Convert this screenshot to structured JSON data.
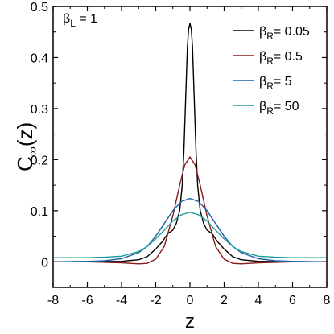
{
  "chart_data": {
    "type": "line",
    "xlabel": "z",
    "ylabel_main": "C",
    "ylabel_sub": "∞",
    "ylabel_suffix": "(z)",
    "xlim": [
      -8,
      8
    ],
    "ylim": [
      -0.05,
      0.5
    ],
    "xticks": [
      "-8",
      "-6",
      "-4",
      "-2",
      "0",
      "2",
      "4",
      "6",
      "8"
    ],
    "yticks": [
      "0",
      "0.1",
      "0.2",
      "0.3",
      "0.4",
      "0.5"
    ],
    "xtick_values": [
      -8,
      -6,
      -4,
      -2,
      0,
      2,
      4,
      6,
      8
    ],
    "ytick_values": [
      0,
      0.1,
      0.2,
      0.3,
      0.4,
      0.5
    ],
    "grid": false,
    "legend_position": "top-right",
    "annotation": {
      "greek": "β",
      "sub": "L",
      "text": " = 1"
    },
    "series": [
      {
        "name_greek": "β",
        "name_sub": "R",
        "name_value": "= 0.05",
        "color": "#000000",
        "x": [
          -8,
          -6,
          -4,
          -3,
          -2.5,
          -2,
          -1.6,
          -1.3,
          -1.0,
          -0.8,
          -0.6,
          -0.45,
          -0.35,
          -0.25,
          -0.15,
          -0.08,
          0,
          0.08,
          0.15,
          0.25,
          0.35,
          0.45,
          0.6,
          0.8,
          1.0,
          1.3,
          1.6,
          2,
          2.5,
          3,
          4,
          6,
          8
        ],
        "y": [
          0.0,
          0.0,
          0.001,
          0.004,
          0.01,
          0.025,
          0.04,
          0.055,
          0.062,
          0.075,
          0.1,
          0.15,
          0.22,
          0.32,
          0.42,
          0.455,
          0.467,
          0.455,
          0.42,
          0.32,
          0.22,
          0.15,
          0.1,
          0.075,
          0.062,
          0.055,
          0.04,
          0.025,
          0.01,
          0.004,
          0.001,
          0.0,
          0.0
        ]
      },
      {
        "name_greek": "β",
        "name_sub": "R",
        "name_value": "= 0.5",
        "color": "#8b1a1a",
        "x": [
          -8,
          -6,
          -4,
          -3,
          -2.5,
          -2,
          -1.5,
          -1.0,
          -0.6,
          -0.3,
          0,
          0.3,
          0.6,
          1.0,
          1.5,
          2,
          2.5,
          3,
          4,
          6,
          8
        ],
        "y": [
          0.0,
          0.0,
          -0.002,
          -0.004,
          -0.003,
          0.005,
          0.03,
          0.09,
          0.15,
          0.19,
          0.205,
          0.19,
          0.15,
          0.09,
          0.03,
          0.005,
          -0.003,
          -0.004,
          -0.002,
          0.0,
          0.0
        ]
      },
      {
        "name_greek": "β",
        "name_sub": "R",
        "name_value": "= 5",
        "color": "#1f5fa8",
        "x": [
          -8,
          -6,
          -5,
          -4,
          -3,
          -2.5,
          -2,
          -1.5,
          -1.0,
          -0.5,
          0,
          0.5,
          1.0,
          1.5,
          2,
          2.5,
          3,
          4,
          5,
          6,
          8
        ],
        "y": [
          0.0,
          0.001,
          0.002,
          0.006,
          0.018,
          0.03,
          0.05,
          0.075,
          0.1,
          0.118,
          0.124,
          0.118,
          0.1,
          0.075,
          0.05,
          0.03,
          0.018,
          0.006,
          0.002,
          0.001,
          0.0
        ]
      },
      {
        "name_greek": "β",
        "name_sub": "R",
        "name_value": "= 50",
        "color": "#1a9a9a",
        "x": [
          -8,
          -6,
          -5,
          -4,
          -3,
          -2.5,
          -2,
          -1.5,
          -1.0,
          -0.5,
          0,
          0.5,
          1.0,
          1.5,
          2,
          2.5,
          3,
          4,
          5,
          6,
          8
        ],
        "y": [
          0.008,
          0.008,
          0.009,
          0.011,
          0.02,
          0.03,
          0.045,
          0.062,
          0.08,
          0.092,
          0.097,
          0.092,
          0.08,
          0.062,
          0.045,
          0.03,
          0.02,
          0.011,
          0.009,
          0.008,
          0.008
        ]
      }
    ]
  }
}
